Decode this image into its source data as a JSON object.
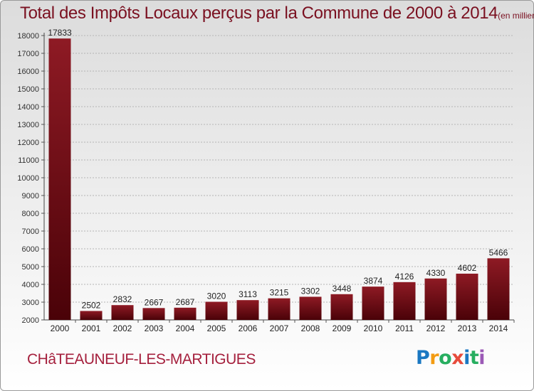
{
  "chart_data": {
    "type": "bar",
    "title": "Total des Impôts Locaux perçus par la Commune de 2000 à 2014",
    "unit_label": "(en milliers d'€)",
    "categories": [
      "2000",
      "2001",
      "2002",
      "2003",
      "2004",
      "2005",
      "2006",
      "2007",
      "2008",
      "2009",
      "2010",
      "2011",
      "2012",
      "2013",
      "2014"
    ],
    "values": [
      17833,
      2502,
      2832,
      2667,
      2687,
      3020,
      3113,
      3215,
      3302,
      3448,
      3874,
      4126,
      4330,
      4602,
      5466
    ],
    "ylim": [
      2000,
      18000
    ],
    "yticks": [
      2000,
      3000,
      4000,
      5000,
      6000,
      7000,
      8000,
      9000,
      10000,
      11000,
      12000,
      13000,
      14000,
      15000,
      16000,
      17000,
      18000
    ],
    "grid": true,
    "bar_color": "#7a0a12"
  },
  "commune": "CHâTEAUNEUF-LES-MARTIGUES",
  "logo": {
    "letters": [
      "P",
      "r",
      "o",
      "x",
      "i",
      "t",
      "i"
    ],
    "colors": [
      "#1a78c2",
      "#f39c12",
      "#27ae60",
      "#e74c3c",
      "#1a78c2",
      "#27ae60",
      "#9b59b6"
    ]
  }
}
